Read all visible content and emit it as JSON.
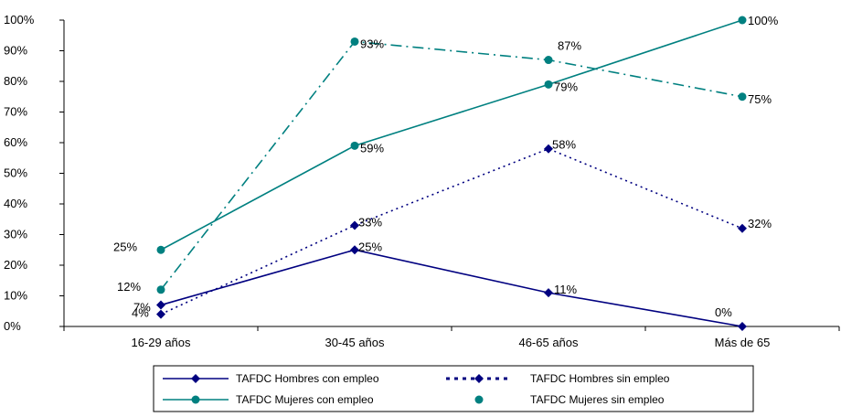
{
  "chart_data": {
    "type": "line",
    "categories": [
      "16-29 años",
      "30-45 años",
      "46-65 años",
      "Más de 65"
    ],
    "y_ticks": [
      "0%",
      "10%",
      "20%",
      "30%",
      "40%",
      "50%",
      "60%",
      "70%",
      "80%",
      "90%",
      "100%"
    ],
    "ylim": [
      0,
      100
    ],
    "grid": false,
    "legend_position": "bottom",
    "series": [
      {
        "name": "TAFDC Hombres con empleo",
        "values": [
          7,
          25,
          11,
          0
        ],
        "labels": [
          "7%",
          "25%",
          "11%",
          "0%"
        ],
        "color": "#000080",
        "line_style": "solid",
        "marker": "diamond"
      },
      {
        "name": "TAFDC Hombres sin empleo",
        "values": [
          4,
          33,
          58,
          32
        ],
        "labels": [
          "4%",
          "33%",
          "58%",
          "32%"
        ],
        "color": "#000080",
        "line_style": "dotted",
        "marker": "diamond"
      },
      {
        "name": "TAFDC Mujeres con empleo",
        "values": [
          25,
          59,
          79,
          100
        ],
        "labels": [
          "25%",
          "59%",
          "79%",
          "100%"
        ],
        "color": "#008080",
        "line_style": "solid",
        "marker": "circle"
      },
      {
        "name": "TAFDC Mujeres sin empleo",
        "values": [
          12,
          93,
          87,
          75
        ],
        "labels": [
          "12%",
          "93%",
          "87%",
          "75%"
        ],
        "color": "#008080",
        "line_style": "dashdot",
        "marker": "circle"
      }
    ]
  }
}
